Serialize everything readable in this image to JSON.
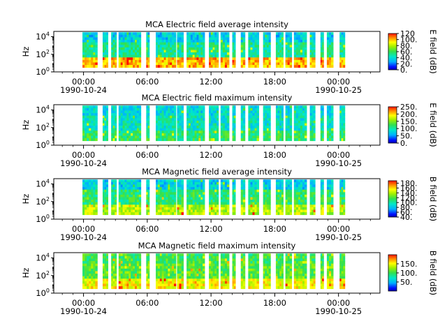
{
  "figure": {
    "panel_count": 4
  },
  "chart_data": [
    {
      "type": "heatmap",
      "title": "MCA  Electric field average intensity",
      "ylabel": "Hz",
      "y_ticks": [
        "10^0",
        "10^2",
        "10^4"
      ],
      "y_log_range": [
        0,
        4.6
      ],
      "x_range_hours": [
        -2.8,
        27.9
      ],
      "x_ticks": [
        {
          "hour": 0,
          "time": "00:00",
          "date": "1990-10-24"
        },
        {
          "hour": 6,
          "time": "06:00",
          "date": ""
        },
        {
          "hour": 12,
          "time": "12:00",
          "date": ""
        },
        {
          "hour": 18,
          "time": "18:00",
          "date": ""
        },
        {
          "hour": 24,
          "time": "00:00",
          "date": "1990-10-25"
        }
      ],
      "colorbar": {
        "label": "E field (dB)",
        "range": [
          0,
          120
        ],
        "ticks": [
          "0.",
          "20.",
          "40.",
          "60.",
          "80.",
          "100.",
          "120"
        ]
      },
      "data_segments_hours": [
        [
          -0.1,
          1.3
        ],
        [
          1.8,
          2.3
        ],
        [
          2.6,
          3.1
        ],
        [
          3.3,
          5.4
        ],
        [
          5.9,
          6.2
        ],
        [
          6.8,
          8.7
        ],
        [
          8.8,
          9.4
        ],
        [
          9.7,
          11.4
        ],
        [
          11.8,
          12.7
        ],
        [
          12.9,
          13.7
        ],
        [
          14.0,
          14.3
        ],
        [
          14.8,
          15.2
        ],
        [
          15.5,
          16.5
        ],
        [
          16.9,
          17.6
        ],
        [
          18.1,
          18.8
        ],
        [
          19.0,
          19.6
        ],
        [
          19.8,
          21.0
        ],
        [
          21.3,
          21.8
        ],
        [
          22.3,
          22.6
        ],
        [
          22.9,
          23.5
        ],
        [
          24.1,
          24.6
        ]
      ],
      "intensity_dB": {
        "low_frequency_band": 100,
        "mid_band": 50,
        "high_band": 35
      }
    },
    {
      "type": "heatmap",
      "title": "MCA  Electric field maximum intensity",
      "ylabel": "Hz",
      "y_ticks": [
        "10^0",
        "10^2",
        "10^4"
      ],
      "y_log_range": [
        0,
        4.6
      ],
      "x_range_hours": [
        -2.8,
        27.9
      ],
      "x_ticks": [
        {
          "hour": 0,
          "time": "00:00",
          "date": "1990-10-24"
        },
        {
          "hour": 6,
          "time": "06:00",
          "date": ""
        },
        {
          "hour": 12,
          "time": "12:00",
          "date": ""
        },
        {
          "hour": 18,
          "time": "18:00",
          "date": ""
        },
        {
          "hour": 24,
          "time": "00:00",
          "date": "1990-10-25"
        }
      ],
      "colorbar": {
        "label": "E field (dB)",
        "range": [
          0,
          250
        ],
        "ticks": [
          "0.",
          "50.",
          "100.",
          "150.",
          "200.",
          "250."
        ]
      },
      "data_segments_hours": [
        [
          -0.1,
          1.3
        ],
        [
          1.8,
          2.3
        ],
        [
          2.6,
          3.1
        ],
        [
          3.3,
          5.4
        ],
        [
          5.9,
          6.2
        ],
        [
          6.8,
          8.7
        ],
        [
          8.8,
          9.4
        ],
        [
          9.7,
          11.4
        ],
        [
          11.8,
          12.7
        ],
        [
          12.9,
          13.7
        ],
        [
          14.0,
          14.3
        ],
        [
          14.8,
          15.2
        ],
        [
          15.5,
          16.5
        ],
        [
          16.9,
          17.6
        ],
        [
          18.1,
          18.8
        ],
        [
          19.0,
          19.6
        ],
        [
          19.8,
          21.0
        ],
        [
          21.3,
          21.8
        ],
        [
          22.3,
          22.6
        ],
        [
          22.9,
          23.5
        ],
        [
          24.1,
          24.6
        ]
      ],
      "intensity_dB": {
        "low_frequency_band": 120,
        "mid_band": 90,
        "high_band": 80
      }
    },
    {
      "type": "heatmap",
      "title": "MCA  Magnetic field average intensity",
      "ylabel": "Hz",
      "y_ticks": [
        "10^0",
        "10^2",
        "10^4"
      ],
      "y_log_range": [
        0,
        4.6
      ],
      "x_range_hours": [
        -2.8,
        27.9
      ],
      "x_ticks": [
        {
          "hour": 0,
          "time": "00:00",
          "date": "1990-10-24"
        },
        {
          "hour": 6,
          "time": "06:00",
          "date": ""
        },
        {
          "hour": 12,
          "time": "12:00",
          "date": ""
        },
        {
          "hour": 18,
          "time": "18:00",
          "date": ""
        },
        {
          "hour": 24,
          "time": "00:00",
          "date": "1990-10-25"
        }
      ],
      "colorbar": {
        "label": "B field (dB)",
        "range": [
          40,
          190
        ],
        "ticks": [
          "40.",
          "60.",
          "80.",
          "100.",
          "120.",
          "140.",
          "160.",
          "180."
        ]
      },
      "data_segments_hours": [
        [
          -0.1,
          1.3
        ],
        [
          1.8,
          2.3
        ],
        [
          2.6,
          3.1
        ],
        [
          3.3,
          5.4
        ],
        [
          5.9,
          6.2
        ],
        [
          6.8,
          8.7
        ],
        [
          8.8,
          9.4
        ],
        [
          9.7,
          11.4
        ],
        [
          11.8,
          12.7
        ],
        [
          12.9,
          13.7
        ],
        [
          14.0,
          14.3
        ],
        [
          14.8,
          15.2
        ],
        [
          15.5,
          16.5
        ],
        [
          16.9,
          17.6
        ],
        [
          18.1,
          18.8
        ],
        [
          19.0,
          19.6
        ],
        [
          19.8,
          21.0
        ],
        [
          21.3,
          21.8
        ],
        [
          22.3,
          22.6
        ],
        [
          22.9,
          23.5
        ],
        [
          24.1,
          24.6
        ]
      ],
      "intensity_dB": {
        "low_frequency_band": 140,
        "mid_band": 110,
        "high_band": 85
      }
    },
    {
      "type": "heatmap",
      "title": "MCA  Magnetic field maximum intensity",
      "ylabel": "Hz",
      "y_ticks": [
        "10^0",
        "10^2",
        "10^4"
      ],
      "y_log_range": [
        0,
        4.6
      ],
      "x_range_hours": [
        -2.8,
        27.9
      ],
      "x_ticks": [
        {
          "hour": 0,
          "time": "00:00",
          "date": "1990-10-24"
        },
        {
          "hour": 6,
          "time": "06:00",
          "date": ""
        },
        {
          "hour": 12,
          "time": "12:00",
          "date": ""
        },
        {
          "hour": 18,
          "time": "18:00",
          "date": ""
        },
        {
          "hour": 24,
          "time": "00:00",
          "date": "1990-10-25"
        }
      ],
      "colorbar": {
        "label": "B field (dB)",
        "range": [
          0,
          200
        ],
        "ticks": [
          "50.",
          "100.",
          "150."
        ]
      },
      "data_segments_hours": [
        [
          -0.1,
          1.3
        ],
        [
          1.8,
          2.3
        ],
        [
          2.6,
          3.1
        ],
        [
          3.3,
          5.4
        ],
        [
          5.9,
          6.2
        ],
        [
          6.8,
          8.7
        ],
        [
          8.8,
          9.4
        ],
        [
          9.7,
          11.4
        ],
        [
          11.8,
          12.7
        ],
        [
          12.9,
          13.7
        ],
        [
          14.0,
          14.3
        ],
        [
          14.8,
          15.2
        ],
        [
          15.5,
          16.5
        ],
        [
          16.9,
          17.6
        ],
        [
          18.1,
          18.8
        ],
        [
          19.0,
          19.6
        ],
        [
          19.8,
          21.0
        ],
        [
          21.3,
          21.8
        ],
        [
          22.3,
          22.6
        ],
        [
          22.9,
          23.5
        ],
        [
          24.1,
          24.6
        ]
      ],
      "intensity_dB": {
        "low_frequency_band": 150,
        "mid_band": 110,
        "high_band": 100
      }
    }
  ]
}
